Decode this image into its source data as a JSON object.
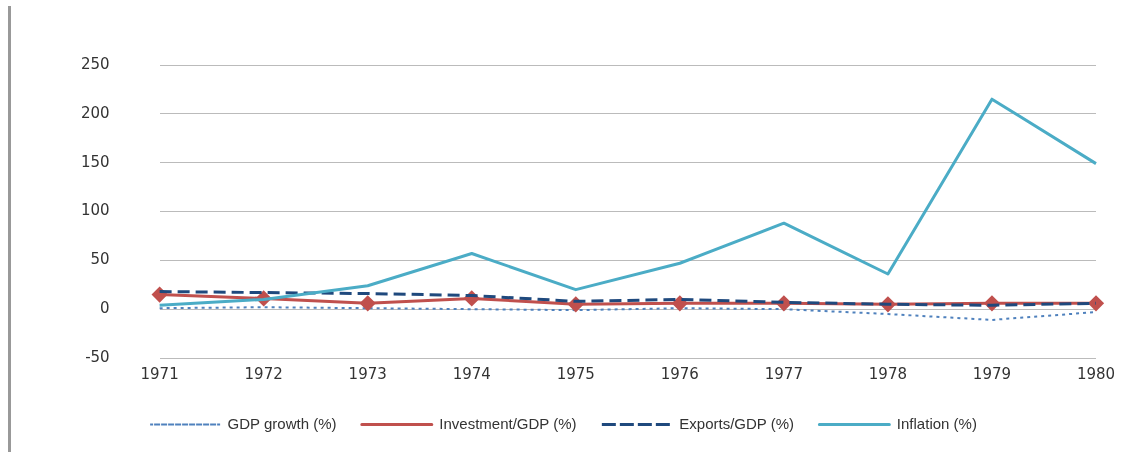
{
  "chart_data": {
    "type": "line",
    "categories": [
      "1971",
      "1972",
      "1973",
      "1974",
      "1975",
      "1976",
      "1977",
      "1978",
      "1979",
      "1980"
    ],
    "series": [
      {
        "name": "GDP growth (%)",
        "color": "#4f81bd",
        "line_style": "dotted",
        "marker": "none",
        "values": [
          1,
          2,
          1,
          0,
          -1,
          1,
          0,
          -5,
          -11,
          -3
        ]
      },
      {
        "name": "Investment/GDP (%)",
        "color": "#c0504d",
        "line_style": "solid",
        "marker": "diamond",
        "values": [
          15,
          11,
          6,
          11,
          5,
          6,
          6,
          5,
          6,
          6
        ]
      },
      {
        "name": "Exports/GDP (%)",
        "color": "#1f497d",
        "line_style": "dashed",
        "marker": "none",
        "values": [
          18,
          17,
          16,
          14,
          8,
          10,
          7,
          5,
          4,
          6
        ]
      },
      {
        "name": "Inflation (%)",
        "color": "#4bacc6",
        "line_style": "solid",
        "marker": "none",
        "values": [
          4,
          10,
          24,
          57,
          20,
          47,
          88,
          36,
          215,
          149
        ]
      }
    ],
    "ylim": [
      -50,
      250
    ],
    "yticks": [
      -50,
      0,
      50,
      100,
      150,
      200,
      250
    ],
    "grid": "y",
    "legend": "bottom"
  }
}
